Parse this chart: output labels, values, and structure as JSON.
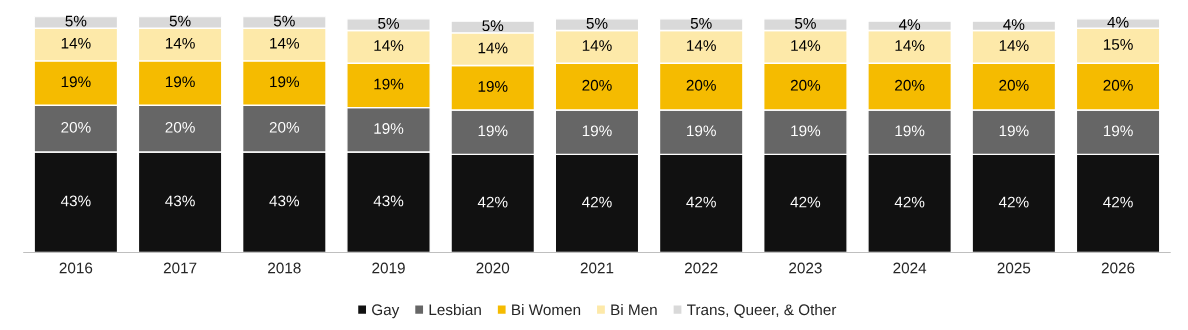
{
  "chart_data": {
    "type": "bar",
    "stacked": true,
    "legend": "bottom",
    "tick_labels": "x",
    "grid": false,
    "categories": [
      "2016",
      "2017",
      "2018",
      "2019",
      "2020",
      "2021",
      "2022",
      "2023",
      "2024",
      "2025",
      "2026"
    ],
    "series": [
      {
        "name": "Gay",
        "color": "#111111",
        "values": [
          43,
          43,
          43,
          43,
          42,
          42,
          42,
          42,
          42,
          42,
          42
        ],
        "value_labels": [
          "43%",
          "43%",
          "43%",
          "43%",
          "42%",
          "42%",
          "42%",
          "42%",
          "42%",
          "42%",
          "42%"
        ]
      },
      {
        "name": "Lesbian",
        "color": "#666666",
        "values": [
          20,
          20,
          20,
          19,
          19,
          19,
          19,
          19,
          19,
          19,
          19
        ],
        "value_labels": [
          "20%",
          "20%",
          "20%",
          "19%",
          "19%",
          "19%",
          "19%",
          "19%",
          "19%",
          "19%",
          "19%"
        ]
      },
      {
        "name": "Bi Women",
        "color": "#f5bb00",
        "values": [
          19,
          19,
          19,
          19,
          19,
          20,
          20,
          20,
          20,
          20,
          20
        ],
        "value_labels": [
          "19%",
          "19%",
          "19%",
          "19%",
          "19%",
          "20%",
          "20%",
          "20%",
          "20%",
          "20%",
          "20%"
        ]
      },
      {
        "name": "Bi Men",
        "color": "#fde9a9",
        "values": [
          14,
          14,
          14,
          14,
          14,
          14,
          14,
          14,
          14,
          14,
          15
        ],
        "value_labels": [
          "14%",
          "14%",
          "14%",
          "14%",
          "14%",
          "14%",
          "14%",
          "14%",
          "14%",
          "14%",
          "15%"
        ]
      },
      {
        "name": "Trans, Queer, & Other",
        "color": "#d9d9d9",
        "values": [
          5,
          5,
          5,
          5,
          5,
          5,
          5,
          5,
          4,
          4,
          4
        ],
        "value_labels": [
          "5%",
          "5%",
          "5%",
          "5%",
          "5%",
          "5%",
          "5%",
          "5%",
          "4%",
          "4%",
          "4%"
        ]
      }
    ]
  }
}
